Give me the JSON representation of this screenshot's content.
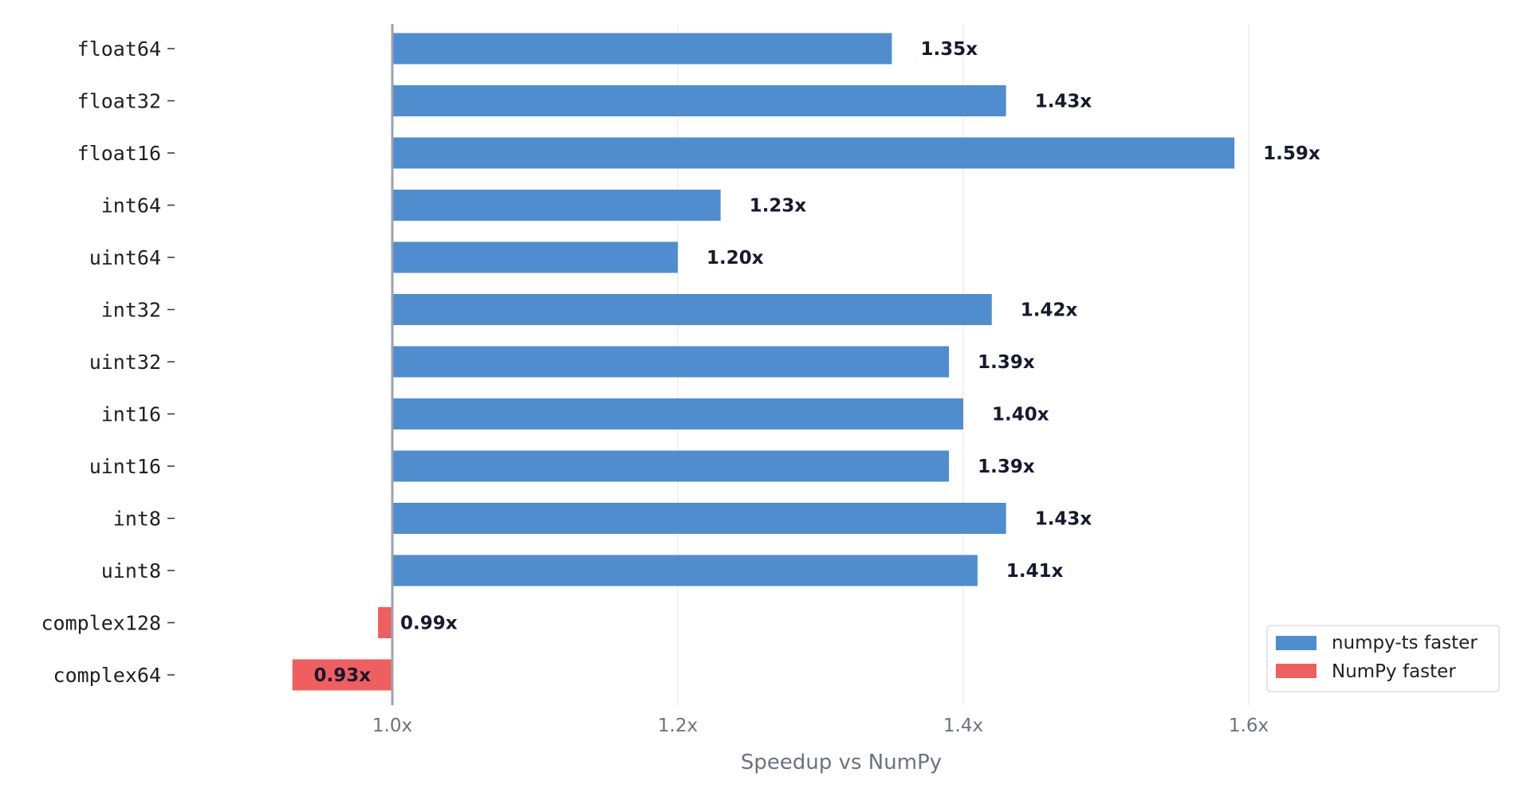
{
  "chart_data": {
    "type": "bar",
    "orientation": "horizontal",
    "categories": [
      "float64",
      "float32",
      "float16",
      "int64",
      "uint64",
      "int32",
      "uint32",
      "int16",
      "uint16",
      "int8",
      "uint8",
      "complex128",
      "complex64"
    ],
    "values": [
      1.35,
      1.43,
      1.59,
      1.23,
      1.2,
      1.42,
      1.39,
      1.4,
      1.39,
      1.43,
      1.41,
      0.99,
      0.93
    ],
    "value_labels": [
      "1.35x",
      "1.43x",
      "1.59x",
      "1.23x",
      "1.20x",
      "1.42x",
      "1.39x",
      "1.40x",
      "1.39x",
      "1.43x",
      "1.41x",
      "0.99x",
      "0.93x"
    ],
    "baseline": 1.0,
    "xlim": [
      0.9,
      1.77
    ],
    "xticks": [
      1.0,
      1.2,
      1.4,
      1.6
    ],
    "xtick_labels": [
      "1.0x",
      "1.2x",
      "1.4x",
      "1.6x"
    ],
    "xlabel": "Speedup vs NumPy",
    "ylabel": "",
    "title": "",
    "grid": "vertical",
    "legend_position": "bottom-right",
    "legend": [
      {
        "label": "numpy-ts faster",
        "color": "#4f8dcf"
      },
      {
        "label": "NumPy faster",
        "color": "#ef5f5f"
      }
    ],
    "colors": {
      "faster": "#4f8dcf",
      "slower": "#ef5f5f",
      "baseline": "#9ca3af",
      "grid": "#e8e8e8"
    }
  }
}
